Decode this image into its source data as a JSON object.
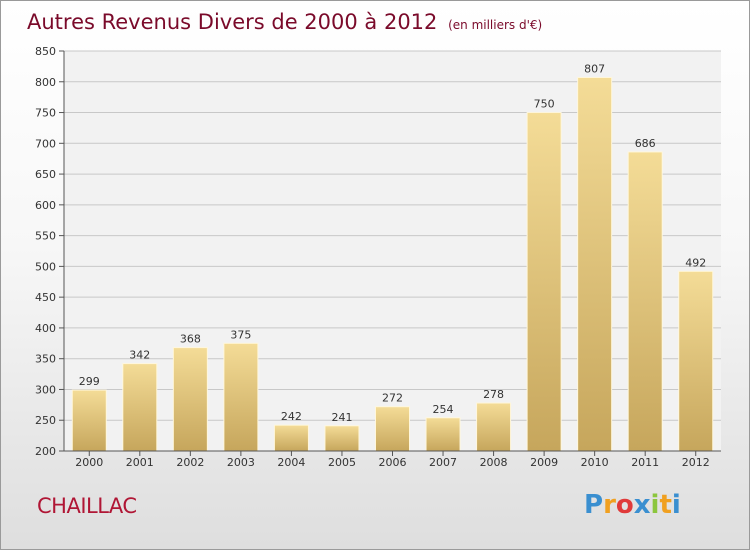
{
  "title": "Autres Revenus Divers de 2000 à 2012",
  "unit": "(en milliers d'€)",
  "location": "CHAILLAC",
  "logo": {
    "letters": [
      "P",
      "r",
      "o",
      "x",
      "i",
      "t",
      "i"
    ],
    "colors": [
      "#3a8fd0",
      "#f0a020",
      "#e03a3a",
      "#3a8fd0",
      "#8cc63e",
      "#f0a020",
      "#3a8fd0"
    ]
  },
  "chart_data": {
    "type": "bar",
    "categories": [
      "2000",
      "2001",
      "2002",
      "2003",
      "2004",
      "2005",
      "2006",
      "2007",
      "2008",
      "2009",
      "2010",
      "2011",
      "2012"
    ],
    "values": [
      299,
      342,
      368,
      375,
      242,
      241,
      272,
      254,
      278,
      750,
      807,
      686,
      492
    ],
    "ylim": [
      200,
      850
    ],
    "yticks": [
      200,
      250,
      300,
      350,
      400,
      450,
      500,
      550,
      600,
      650,
      700,
      750,
      800,
      850
    ],
    "grid": true,
    "bar_color": "#e3c57a"
  }
}
